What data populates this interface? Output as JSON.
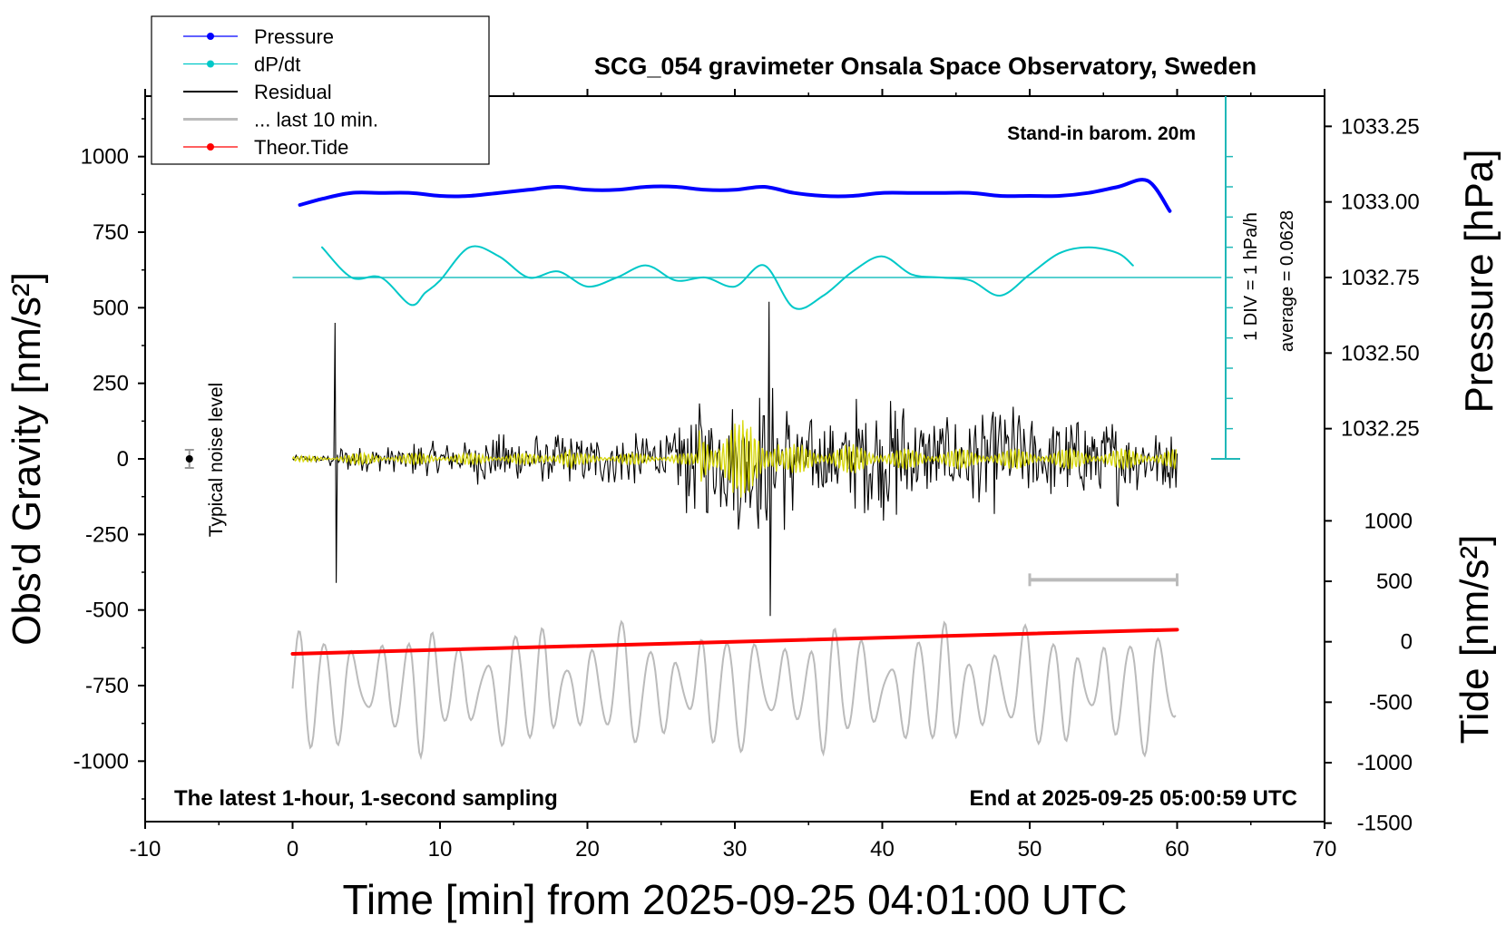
{
  "chart_data": {
    "type": "line",
    "title": "SCG_054 gravimeter Onsala Space Observatory, Sweden",
    "xlabel": "Time [min] from 2025-09-25 04:01:00 UTC",
    "ylabel_left": "Obs'd Gravity [nm/s²]",
    "ylabel_right_top": "Pressure [hPa]",
    "ylabel_right_bottom": "Tide [nm/s²]",
    "xlim": [
      -10,
      70
    ],
    "ylim": [
      -1200,
      1200
    ],
    "x_ticks": [
      "-10",
      "0",
      "10",
      "20",
      "30",
      "40",
      "50",
      "60",
      "70"
    ],
    "y_ticks_left": [
      "1000",
      "750",
      "500",
      "250",
      "0",
      "-250",
      "-500",
      "-750",
      "-1000"
    ],
    "pressure_ticks": [
      "1033.25",
      "1033.00",
      "1032.75",
      "1032.50",
      "1032.25"
    ],
    "tide_ticks": [
      "1000",
      "500",
      "0",
      "-500",
      "-1000",
      "-1500"
    ],
    "annotations": {
      "top_right": "Stand-in barom. 20m",
      "bottom_left": "The latest 1-hour, 1-second sampling",
      "bottom_right": "End at 2025-09-25 05:00:59 UTC",
      "noise_label": "Typical noise level",
      "div_label": "1 DIV = 1 hPa/h",
      "average_label": "average = 0.0628"
    },
    "legend": [
      {
        "name": "Pressure",
        "color": "#0000ff",
        "marker": true
      },
      {
        "name": "dP/dt",
        "color": "#00c8c8",
        "marker": true
      },
      {
        "name": "Residual",
        "color": "#000000",
        "marker": false
      },
      {
        "name": "... last 10 min.",
        "color": "#bbbbbb",
        "marker": false
      },
      {
        "name": "Theor.Tide",
        "color": "#ff0000",
        "marker": true
      }
    ],
    "series": [
      {
        "name": "Pressure",
        "color": "#0000ff",
        "axis": "pressure_hPa",
        "x": [
          0.5,
          2,
          4,
          6,
          8,
          10,
          12,
          14,
          16,
          18,
          20,
          22,
          24,
          26,
          28,
          30,
          32,
          34,
          36,
          38,
          40,
          42,
          44,
          46,
          48,
          50,
          52,
          54,
          56,
          58,
          59.5
        ],
        "values": [
          1032.99,
          1033.01,
          1033.03,
          1033.03,
          1033.03,
          1033.02,
          1033.02,
          1033.03,
          1033.04,
          1033.05,
          1033.04,
          1033.04,
          1033.05,
          1033.05,
          1033.04,
          1033.04,
          1033.05,
          1033.03,
          1033.02,
          1033.02,
          1033.03,
          1033.03,
          1033.03,
          1033.03,
          1033.02,
          1033.02,
          1033.02,
          1033.03,
          1033.05,
          1033.07,
          1032.97
        ]
      },
      {
        "name": "dP/dt",
        "color": "#00c8c8",
        "axis": "gravity_offset",
        "x": [
          2,
          4,
          6,
          8,
          9,
          10,
          12,
          14,
          16,
          18,
          20,
          22,
          24,
          26,
          28,
          30,
          32,
          34,
          36,
          38,
          40,
          42,
          44,
          46,
          48,
          50,
          52,
          54,
          56,
          57
        ],
        "values": [
          700,
          600,
          600,
          510,
          550,
          590,
          700,
          670,
          600,
          620,
          570,
          600,
          640,
          590,
          600,
          570,
          640,
          500,
          540,
          620,
          670,
          610,
          600,
          590,
          540,
          610,
          680,
          700,
          680,
          640
        ]
      },
      {
        "name": "Theor.Tide",
        "color": "#ff0000",
        "axis": "tide_nm_s2",
        "x": [
          0,
          60
        ],
        "values": [
          -100,
          100
        ]
      }
    ],
    "typical_noise_level": {
      "x": -7,
      "value": 0
    }
  }
}
